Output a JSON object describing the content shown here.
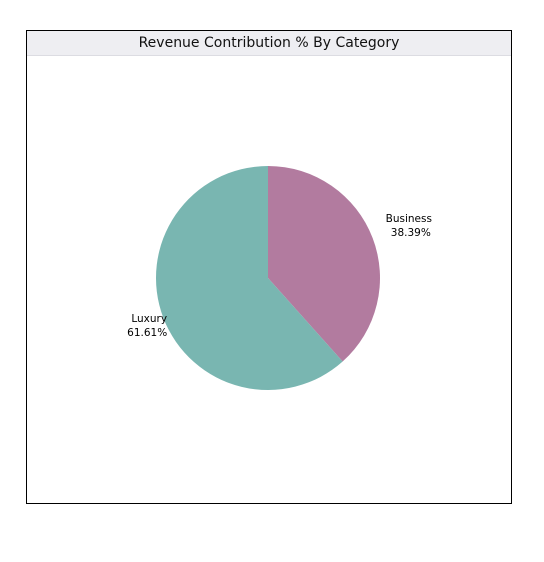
{
  "chart_data": {
    "type": "pie",
    "title": "Revenue Contribution % By Category",
    "slices": [
      {
        "label": "Business",
        "value": 38.39,
        "display": "38.39%",
        "color": "#b27b9f"
      },
      {
        "label": "Luxury",
        "value": 61.61,
        "display": "61.61%",
        "color": "#79b6b1"
      }
    ],
    "start_angle": "top, clockwise",
    "legend": "none"
  }
}
